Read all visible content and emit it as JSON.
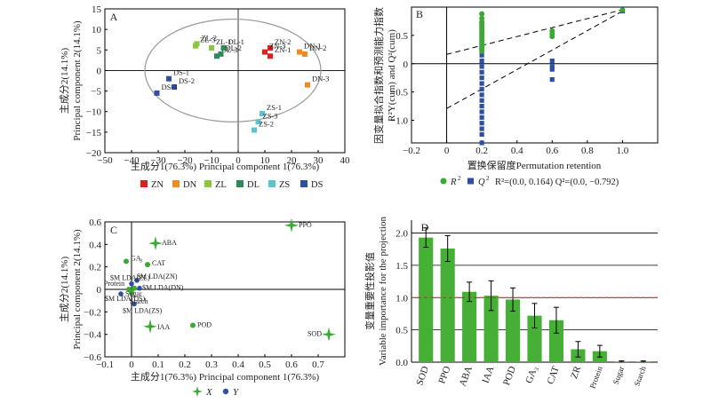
{
  "chart_data": [
    {
      "panel": "A",
      "type": "scatter",
      "xlabel": "主成分1(76.3%) Principal component 1(76.3%)",
      "ylabel_cn": "主成分2(14.1%)",
      "ylabel_en": "Principal component 2(14.1%)",
      "xlim": [
        -50,
        40
      ],
      "ylim": [
        -20,
        15
      ],
      "xticks": [
        -50,
        -40,
        -30,
        -20,
        -10,
        0,
        10,
        20,
        30,
        40
      ],
      "yticks": [
        -20,
        -15,
        -10,
        -5,
        0,
        5,
        10,
        15
      ],
      "ellipse": {
        "cx": -2,
        "cy": 0,
        "rx": 33,
        "ry": 12.5
      },
      "legend": {
        "placement": "bottom",
        "items": [
          {
            "name": "ZN",
            "color": "#e02020"
          },
          {
            "name": "DN",
            "color": "#f08a24"
          },
          {
            "name": "ZL",
            "color": "#8cc63f"
          },
          {
            "name": "DL",
            "color": "#2e8b57"
          },
          {
            "name": "ZS",
            "color": "#5bc4d1"
          },
          {
            "name": "DS",
            "color": "#2f4fa2"
          }
        ]
      },
      "points": [
        {
          "label": "ZL-2",
          "x": -15.5,
          "y": 6.5,
          "group": "ZL"
        },
        {
          "label": "ZL-3",
          "x": -16,
          "y": 6,
          "group": "ZL"
        },
        {
          "label": "ZL-1",
          "x": -10,
          "y": 5.5,
          "group": "ZL"
        },
        {
          "label": "DL-3",
          "x": -8,
          "y": 3.5,
          "group": "DL"
        },
        {
          "label": "DL-1",
          "x": -5.5,
          "y": 5.5,
          "group": "DL"
        },
        {
          "label": "DL-2",
          "x": -6.5,
          "y": 4,
          "group": "DL"
        },
        {
          "label": "ZN-2",
          "x": 12,
          "y": 5.5,
          "group": "ZN"
        },
        {
          "label": "ZN-3",
          "x": 10,
          "y": 4.5,
          "group": "ZN"
        },
        {
          "label": "ZN-1",
          "x": 12,
          "y": 3.5,
          "group": "ZN"
        },
        {
          "label": "DN-1",
          "x": 23,
          "y": 4.5,
          "group": "DN"
        },
        {
          "label": "DN-2",
          "x": 25,
          "y": 4,
          "group": "DN"
        },
        {
          "label": "DN-3",
          "x": 26,
          "y": -3.5,
          "group": "DN"
        },
        {
          "label": "ZS-1",
          "x": 9,
          "y": -10.5,
          "group": "ZS"
        },
        {
          "label": "ZS-3",
          "x": 7.5,
          "y": -12.5,
          "group": "ZS"
        },
        {
          "label": "ZS-2",
          "x": 6,
          "y": -14.5,
          "group": "ZS"
        },
        {
          "label": "DS-1",
          "x": -26,
          "y": -2,
          "group": "DS"
        },
        {
          "label": "DS-2",
          "x": -24,
          "y": -4,
          "group": "DS"
        },
        {
          "label": "DS-3",
          "x": -30.5,
          "y": -5.5,
          "group": "DS"
        }
      ]
    },
    {
      "panel": "B",
      "type": "scatter",
      "xlabel": "置换保留度Permutation retention",
      "ylabel_cn": "因变量拟合指数和预测能力指数",
      "ylabel_en": "R²Y(cum) and Q²(cum)",
      "xlim": [
        -0.2,
        1.2
      ],
      "ylim": [
        -1.4,
        1.0
      ],
      "xticks": [
        -0.2,
        0,
        0.2,
        0.4,
        0.6,
        0.8,
        1.0
      ],
      "yticks": [
        -1.0,
        -0.5,
        0,
        0.5
      ],
      "legend_text": {
        "r2": "R",
        "q2": "Q",
        "sup": "2",
        "intercepts": "R²=(0.0, 0.164) Q²=(0.0, −0.792)"
      },
      "series": [
        {
          "name": "R2",
          "color": "#3aaa35",
          "points": [
            [
              0.2,
              0.88
            ],
            [
              0.2,
              0.8
            ],
            [
              0.2,
              0.74
            ],
            [
              0.2,
              0.7
            ],
            [
              0.2,
              0.66
            ],
            [
              0.2,
              0.62
            ],
            [
              0.2,
              0.58
            ],
            [
              0.2,
              0.54
            ],
            [
              0.2,
              0.5
            ],
            [
              0.2,
              0.46
            ],
            [
              0.2,
              0.42
            ],
            [
              0.2,
              0.38
            ],
            [
              0.2,
              0.34
            ],
            [
              0.2,
              0.3
            ],
            [
              0.2,
              0.26
            ],
            [
              0.2,
              0.22
            ],
            [
              0.6,
              0.58
            ],
            [
              0.6,
              0.53
            ],
            [
              0.6,
              0.48
            ],
            [
              1.0,
              0.95
            ]
          ],
          "regression": {
            "intercept": 0.164,
            "slope": 0.79
          }
        },
        {
          "name": "Q2",
          "color": "#2f4fa2",
          "points": [
            [
              0.2,
              0.7
            ],
            [
              0.2,
              0.5
            ],
            [
              0.2,
              0.3
            ],
            [
              0.2,
              0.15
            ],
            [
              0.2,
              0.05
            ],
            [
              0.2,
              -0.05
            ],
            [
              0.2,
              -0.15
            ],
            [
              0.2,
              -0.25
            ],
            [
              0.2,
              -0.35
            ],
            [
              0.2,
              -0.45
            ],
            [
              0.2,
              -0.55
            ],
            [
              0.2,
              -0.65
            ],
            [
              0.2,
              -0.75
            ],
            [
              0.2,
              -0.85
            ],
            [
              0.2,
              -0.95
            ],
            [
              0.2,
              -1.05
            ],
            [
              0.2,
              -1.15
            ],
            [
              0.2,
              -1.25
            ],
            [
              0.2,
              -1.4
            ],
            [
              0.6,
              0.05
            ],
            [
              0.6,
              -0.05
            ],
            [
              0.6,
              -0.1
            ],
            [
              0.6,
              -0.28
            ],
            [
              1.0,
              0.93
            ]
          ],
          "regression": {
            "intercept": -0.792,
            "slope": 1.72
          }
        }
      ]
    },
    {
      "panel": "C",
      "type": "scatter",
      "xlabel": "主成分1(76.3%) Principal component 1(76.3%)",
      "ylabel_cn": "主成分2(14.1%)",
      "ylabel_en": "Principal component 2(14.1%)",
      "xlim": [
        -0.1,
        0.8
      ],
      "ylim": [
        -0.6,
        0.6
      ],
      "xticks": [
        -0.1,
        0,
        0.1,
        0.2,
        0.3,
        0.4,
        0.5,
        0.6,
        0.7
      ],
      "yticks": [
        -0.6,
        -0.4,
        -0.2,
        0,
        0.2,
        0.4,
        0.6
      ],
      "legend": {
        "items": [
          {
            "name": "X",
            "color": "#3aaa35"
          },
          {
            "name": "Y",
            "color": "#2f4fa2"
          }
        ]
      },
      "x_points": [
        {
          "label": "PPO",
          "x": 0.6,
          "y": 0.57,
          "marker": "star"
        },
        {
          "label": "ABA",
          "x": 0.09,
          "y": 0.41,
          "marker": "star"
        },
        {
          "label": "IAA",
          "x": 0.07,
          "y": -0.33,
          "marker": "star"
        },
        {
          "label": "SOD",
          "x": 0.74,
          "y": -0.4,
          "marker": "star"
        },
        {
          "label": "GA3",
          "x": -0.02,
          "y": 0.25,
          "marker": "dot"
        },
        {
          "label": "CAT",
          "x": 0.06,
          "y": 0.22,
          "marker": "dot"
        },
        {
          "label": "POD",
          "x": 0.23,
          "y": -0.32,
          "marker": "dot"
        },
        {
          "label": "Protein",
          "x": -0.01,
          "y": 0.0,
          "marker": "dot"
        },
        {
          "label": "Sugar",
          "x": 0.01,
          "y": 0.01,
          "marker": "dot"
        },
        {
          "label": "Starch",
          "x": 0.0,
          "y": -0.03,
          "marker": "dot"
        }
      ],
      "y_points": [
        {
          "label": "$M LDA(ZN)",
          "x": 0.02,
          "y": 0.08
        },
        {
          "label": "$M LDA(ZL)",
          "x": 0.0,
          "y": 0.05
        },
        {
          "label": "$M LDA(DN)",
          "x": 0.03,
          "y": 0.01
        },
        {
          "label": "$M LDA(DS)",
          "x": -0.04,
          "y": -0.04
        },
        {
          "label": "$M LDA(ZS)",
          "x": 0.01,
          "y": -0.13
        }
      ]
    },
    {
      "panel": "D",
      "type": "bar",
      "ylabel_cn": "变量重要性投影值",
      "ylabel_en": "Variable importance for the projection",
      "ylim": [
        0,
        2.2
      ],
      "yticks": [
        0,
        0.5,
        1.0,
        1.5,
        2.0
      ],
      "threshold": 1.0,
      "color": "#45b035",
      "categories": [
        "SOD",
        "PPO",
        "ABA",
        "IAA",
        "POD",
        "GA₃",
        "CAT",
        "ZR",
        "Protein",
        "Sugar",
        "Starch"
      ],
      "values": [
        1.93,
        1.76,
        1.09,
        1.03,
        0.97,
        0.72,
        0.65,
        0.2,
        0.17,
        0.01,
        0.01
      ],
      "errors": [
        0.15,
        0.2,
        0.15,
        0.23,
        0.18,
        0.19,
        0.2,
        0.12,
        0.09,
        0.01,
        0.01
      ]
    }
  ]
}
